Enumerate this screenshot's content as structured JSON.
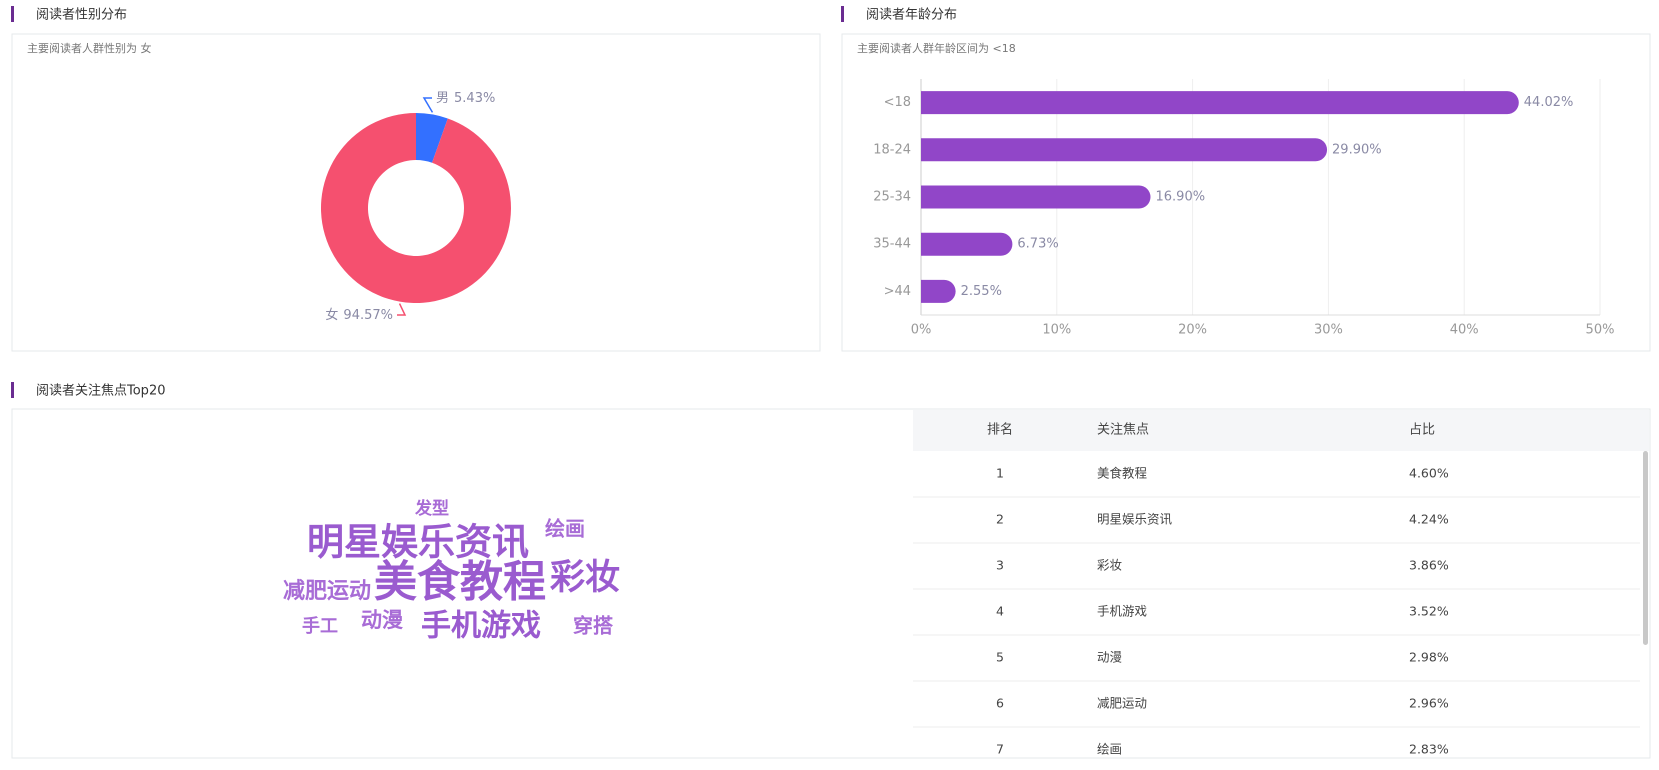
{
  "chart_data": [
    {
      "type": "pie",
      "title": "阅读者性别分布",
      "subtitle": "主要阅读者人群性别为 女",
      "categories": [
        "男",
        "女"
      ],
      "values": [
        5.43,
        94.57
      ],
      "value_labels": [
        "5.43%",
        "94.57%"
      ],
      "colors": [
        "#3370ff",
        "#f5506f"
      ]
    },
    {
      "type": "bar",
      "title": "阅读者年龄分布",
      "subtitle": "主要阅读者人群年龄区间为 <18",
      "categories": [
        "<18",
        "18-24",
        "25-34",
        "35-44",
        ">44"
      ],
      "values": [
        44.02,
        29.9,
        16.9,
        6.73,
        2.55
      ],
      "value_labels": [
        "44.02%",
        "29.90%",
        "16.90%",
        "6.73%",
        "2.55%"
      ],
      "color": "#9146c8",
      "xlim": [
        0,
        50
      ],
      "xticks": [
        {
          "value": 0,
          "label": "0%"
        },
        {
          "value": 10,
          "label": "10%"
        },
        {
          "value": 20,
          "label": "20%"
        },
        {
          "value": 30,
          "label": "30%"
        },
        {
          "value": 40,
          "label": "40%"
        },
        {
          "value": 50,
          "label": "50%"
        }
      ],
      "grid": true
    }
  ],
  "word_cloud": {
    "title": "阅读者关注焦点Top20",
    "words": [
      "发型",
      "明星娱乐资讯",
      "绘画",
      "减肥运动",
      "美食教程",
      "彩妆",
      "手工",
      "动漫",
      "手机游戏",
      "穿搭"
    ]
  },
  "table": {
    "columns": [
      "排名",
      "关注焦点",
      "占比"
    ],
    "rows": [
      [
        "1",
        "美食教程",
        "4.60%"
      ],
      [
        "2",
        "明星娱乐资讯",
        "4.24%"
      ],
      [
        "3",
        "彩妆",
        "3.86%"
      ],
      [
        "4",
        "手机游戏",
        "3.52%"
      ],
      [
        "5",
        "动漫",
        "2.98%"
      ],
      [
        "6",
        "减肥运动",
        "2.96%"
      ],
      [
        "7",
        "绘画",
        "2.83%"
      ]
    ]
  }
}
